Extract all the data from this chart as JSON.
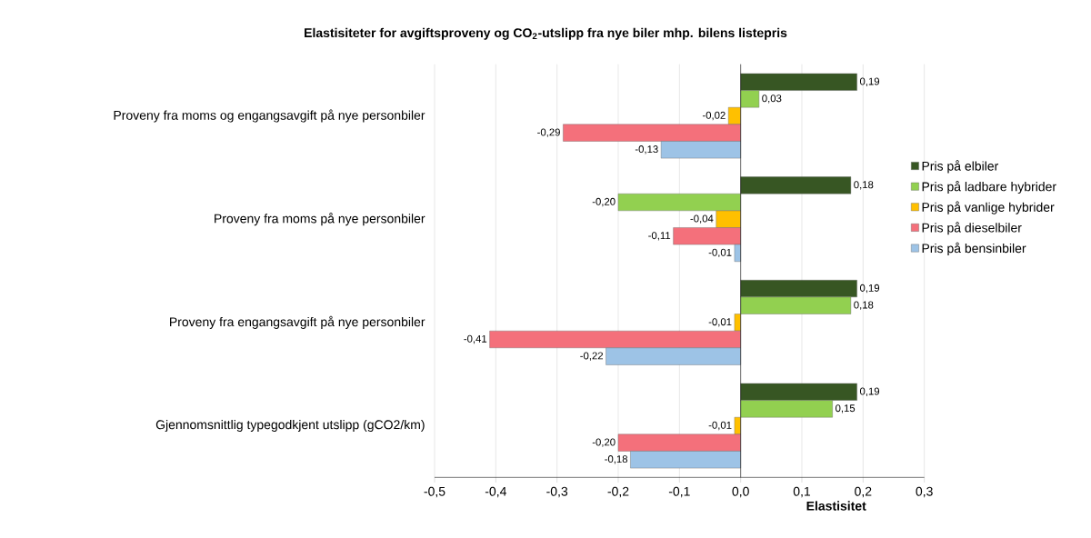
{
  "chart_data": {
    "type": "bar",
    "orientation": "horizontal",
    "title": "Elastisiteter for avgiftsproveny og CO$_{2}$-utslipp fra nye biler mhp. bilens listepris",
    "xlabel": "Elastisitet",
    "categories": [
      "Proveny fra moms og engangsavgift på nye personbiler",
      "Proveny fra moms på nye personbiler",
      "Proveny fra engangsavgift på nye personbiler",
      "Gjennomsnittlig typegodkjent utslipp (gCO2/km)"
    ],
    "series": [
      {
        "name": "Pris på elbiler",
        "color": "#375623",
        "values": [
          0.19,
          0.18,
          0.19,
          0.19
        ],
        "value_labels": [
          "0,19",
          "0,18",
          "0,19",
          "0,19"
        ]
      },
      {
        "name": "Pris på ladbare hybrider",
        "color": "#92d050",
        "values": [
          0.03,
          -0.2,
          0.18,
          0.15
        ],
        "value_labels": [
          "0,03",
          "-0,20",
          "0,18",
          "0,15"
        ]
      },
      {
        "name": "Pris på vanlige hybrider",
        "color": "#ffc000",
        "values": [
          -0.02,
          -0.04,
          -0.01,
          -0.01
        ],
        "value_labels": [
          "-0,02",
          "-0,04",
          "-0,01",
          "-0,01"
        ]
      },
      {
        "name": "Pris på dieselbiler",
        "color": "#f4707b",
        "values": [
          -0.29,
          -0.11,
          -0.41,
          -0.2
        ],
        "value_labels": [
          "-0,29",
          "-0,11",
          "-0,41",
          "-0,20"
        ]
      },
      {
        "name": "Pris på bensinbiler",
        "color": "#9dc3e6",
        "values": [
          -0.13,
          -0.01,
          -0.22,
          -0.18
        ],
        "value_labels": [
          "-0,13",
          "-0,01",
          "-0,22",
          "-0,18"
        ]
      }
    ],
    "xlim": [
      -0.5,
      0.3
    ],
    "xticks": [
      {
        "value": -0.5,
        "label": "-0,5"
      },
      {
        "value": -0.4,
        "label": "-0,4"
      },
      {
        "value": -0.3,
        "label": "-0,3"
      },
      {
        "value": -0.2,
        "label": "-0,2"
      },
      {
        "value": -0.1,
        "label": "-0,1"
      },
      {
        "value": 0.0,
        "label": "0,0"
      },
      {
        "value": 0.1,
        "label": "0,1"
      },
      {
        "value": 0.2,
        "label": "0,2"
      },
      {
        "value": 0.3,
        "label": "0,3"
      }
    ],
    "grid": "x",
    "legend": "right"
  }
}
